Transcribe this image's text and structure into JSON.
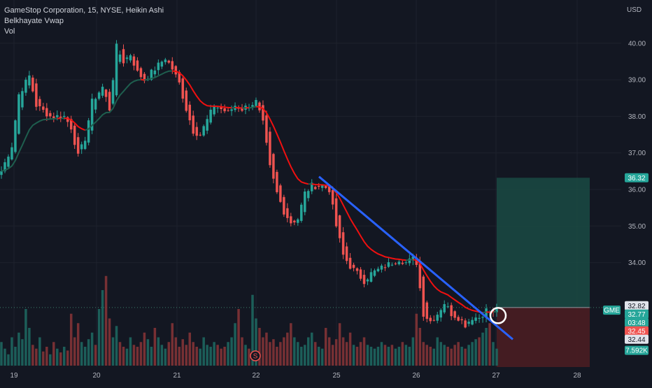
{
  "legend": {
    "symbol_line": "GameStop Corporation, 15, NYSE, Heikin Ashi",
    "indicator_1": "Belkhayate Vwap",
    "indicator_2": "Vol"
  },
  "colors": {
    "background": "#131722",
    "up": "#26a69a",
    "down": "#ef5350",
    "vwap_red": "#f01010",
    "vwap_green": "#1e5e4e",
    "trendline": "#2962ff",
    "target_zone": "#1a4a43",
    "stop_zone": "#4a1d22",
    "grid": "#1e222d"
  },
  "currency": "USD",
  "chart_data": {
    "type": "candlestick",
    "title": "GameStop Corporation, 15, NYSE, Heikin Ashi",
    "y_ticks": [
      "40.00",
      "39.00",
      "38.00",
      "37.00",
      "36.00",
      "35.00",
      "34.00"
    ],
    "x_ticks": [
      "19",
      "20",
      "21",
      "22",
      "25",
      "26",
      "27",
      "28"
    ],
    "ylim": [
      31.2,
      40.8
    ],
    "series_legend": [
      "Belkhayate Vwap",
      "Vol"
    ],
    "key_prices": [
      {
        "label": "32.82",
        "value": 32.82,
        "color": "#e0e3eb",
        "text_color": "#131722"
      },
      {
        "label": "GME",
        "value": 32.7,
        "color": "#26a69a",
        "text_color": "#ffffff"
      },
      {
        "label": "32.77",
        "value": 32.77,
        "color": "#26a69a",
        "text_color": "#ffffff"
      },
      {
        "label": "03:48",
        "value": 32.55,
        "color": "#26a69a",
        "text_color": "#ffffff"
      },
      {
        "label": "32.45",
        "value": 32.28,
        "color": "#ef5350",
        "text_color": "#ffffff"
      },
      {
        "label": "32.44",
        "value": 31.93,
        "color": "#e0e3eb",
        "text_color": "#131722"
      },
      {
        "label": "7.592K",
        "value": 31.6,
        "color": "#26a69a",
        "text_color": "#ffffff"
      },
      {
        "label": "36.32",
        "value": 36.32,
        "color": "#26a69a",
        "text_color": "#ffffff"
      }
    ],
    "position": {
      "entry": 32.77,
      "target": 36.32,
      "stop": 31.2
    },
    "trendline": {
      "start": 36.35,
      "end": 31.9
    },
    "anchors": [
      [
        0,
        36.5
      ],
      [
        3,
        37.2
      ],
      [
        5,
        38.6
      ],
      [
        8,
        39.1
      ],
      [
        10,
        38.3
      ],
      [
        14,
        38.0
      ],
      [
        18,
        38.0
      ],
      [
        20,
        37.7
      ],
      [
        22,
        36.9
      ],
      [
        24,
        37.4
      ],
      [
        26,
        38.4
      ],
      [
        29,
        38.8
      ],
      [
        31,
        38.2
      ],
      [
        33,
        39.9
      ],
      [
        35,
        39.5
      ],
      [
        37,
        39.7
      ],
      [
        39,
        39.2
      ],
      [
        41,
        39.0
      ],
      [
        44,
        39.3
      ],
      [
        47,
        39.6
      ],
      [
        49,
        39.3
      ],
      [
        51,
        38.9
      ],
      [
        53,
        38.2
      ],
      [
        55,
        37.6
      ],
      [
        57,
        37.5
      ],
      [
        59,
        37.9
      ],
      [
        61,
        38.3
      ],
      [
        63,
        38.2
      ],
      [
        65,
        38.1
      ],
      [
        67,
        38.3
      ],
      [
        69,
        38.2
      ],
      [
        71,
        38.3
      ],
      [
        73,
        38.4
      ],
      [
        75,
        37.8
      ],
      [
        77,
        36.6
      ],
      [
        79,
        35.9
      ],
      [
        81,
        35.4
      ],
      [
        83,
        35.1
      ],
      [
        85,
        35.2
      ],
      [
        87,
        35.9
      ],
      [
        89,
        36.1
      ],
      [
        92,
        36.1
      ],
      [
        94,
        36.0
      ],
      [
        96,
        35.0
      ],
      [
        98,
        34.2
      ],
      [
        100,
        33.9
      ],
      [
        102,
        33.7
      ],
      [
        104,
        33.5
      ],
      [
        106,
        33.7
      ],
      [
        108,
        33.8
      ],
      [
        110,
        33.9
      ],
      [
        112,
        34.0
      ],
      [
        114,
        34.1
      ],
      [
        116,
        34.0
      ],
      [
        118,
        34.1
      ],
      [
        119,
        34.0
      ],
      [
        120,
        33.3
      ],
      [
        121,
        32.6
      ],
      [
        123,
        32.4
      ],
      [
        125,
        32.6
      ],
      [
        127,
        32.9
      ],
      [
        129,
        32.6
      ],
      [
        131,
        32.5
      ],
      [
        133,
        32.3
      ],
      [
        135,
        32.5
      ],
      [
        137,
        32.5
      ],
      [
        139,
        32.7
      ],
      [
        141,
        32.6
      ],
      [
        142,
        32.8
      ]
    ],
    "volume_profile": [
      0.25,
      0.18,
      0.12,
      0.3,
      0.2,
      0.35,
      0.28,
      0.6,
      0.4,
      0.22,
      0.18,
      0.3,
      0.15,
      0.2,
      0.12,
      0.25,
      0.18,
      0.14,
      0.2,
      0.16,
      0.55,
      0.3,
      0.45,
      0.25,
      0.2,
      0.28,
      0.35,
      0.22,
      0.6,
      0.8,
      0.95,
      0.5,
      0.3,
      0.42,
      0.25,
      0.2,
      0.18,
      0.3,
      0.22,
      0.2,
      0.25,
      0.35,
      0.28,
      0.2,
      0.4,
      0.3,
      0.22,
      0.18,
      0.25,
      0.45,
      0.3,
      0.2,
      0.28,
      0.22,
      0.35,
      0.25,
      0.2,
      0.18,
      0.3,
      0.22,
      0.2,
      0.25,
      0.22,
      0.18,
      0.2,
      0.25,
      0.3,
      0.45,
      0.6,
      0.3,
      0.22,
      0.18,
      0.75,
      0.5,
      0.4,
      0.3,
      0.35,
      0.25,
      0.28,
      0.2,
      0.25,
      0.3,
      0.35,
      0.45,
      0.3,
      0.25,
      0.2,
      0.22,
      0.3,
      0.35,
      0.25,
      0.2,
      0.18,
      0.4,
      0.3,
      0.22,
      0.28,
      0.45,
      0.3,
      0.25,
      0.35,
      0.22,
      0.2,
      0.25,
      0.3,
      0.22,
      0.2,
      0.18,
      0.2,
      0.25,
      0.22,
      0.2,
      0.22,
      0.18,
      0.2,
      0.25,
      0.22,
      0.2,
      0.3,
      0.55,
      0.4,
      0.25,
      0.22,
      0.2,
      0.18,
      0.3,
      0.25,
      0.22,
      0.2,
      0.18,
      0.22,
      0.25,
      0.2,
      0.18,
      0.22,
      0.25,
      0.28,
      0.3,
      0.35,
      0.4,
      0.45
    ]
  }
}
